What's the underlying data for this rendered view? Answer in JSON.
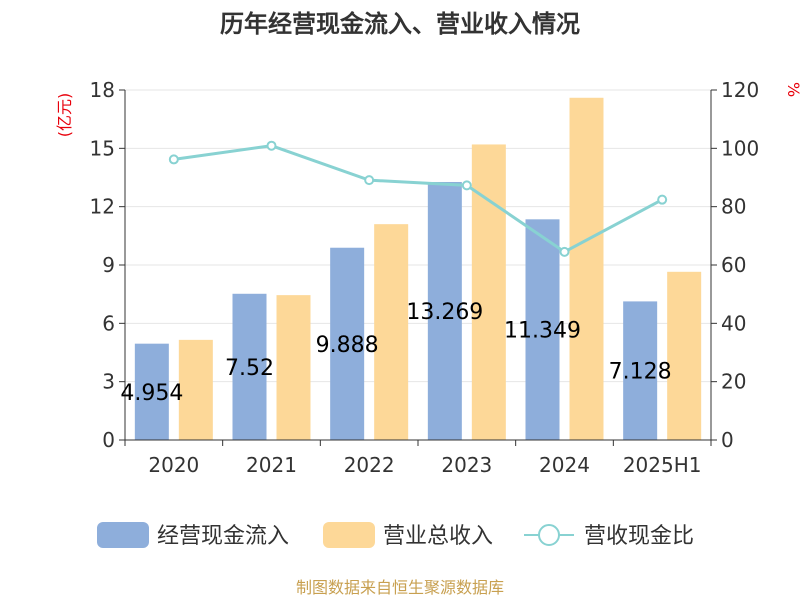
{
  "chart_data": {
    "type": "bar",
    "title": "历年经营现金流入、营业收入情况",
    "categories": [
      "2020",
      "2021",
      "2022",
      "2023",
      "2024",
      "2025H1"
    ],
    "series": [
      {
        "name": "经营现金流入",
        "type": "bar",
        "axis": "left",
        "color": "#8eaedb",
        "values": [
          4.954,
          7.52,
          9.888,
          13.269,
          11.349,
          7.128
        ],
        "labels": [
          "4.954",
          "7.52",
          "9.888",
          "13.269",
          "11.349",
          "7.128"
        ]
      },
      {
        "name": "营业总收入",
        "type": "bar",
        "axis": "left",
        "color": "#fdd898",
        "values": [
          5.15,
          7.45,
          11.1,
          15.2,
          17.6,
          8.65
        ]
      },
      {
        "name": "营收现金比",
        "type": "line",
        "axis": "right",
        "color": "#88d2d2",
        "values": [
          96.2,
          100.9,
          89.1,
          87.3,
          64.5,
          82.4
        ]
      }
    ],
    "y_left": {
      "label": "(亿元)",
      "ticks": [
        "0",
        "3",
        "6",
        "9",
        "12",
        "15",
        "18"
      ],
      "min": 0,
      "max": 18
    },
    "y_right": {
      "label": "%",
      "ticks": [
        "0",
        "20",
        "40",
        "60",
        "80",
        "100",
        "120"
      ],
      "min": 0,
      "max": 120
    },
    "legend_position": "bottom"
  },
  "source_text": "制图数据来自恒生聚源数据库"
}
